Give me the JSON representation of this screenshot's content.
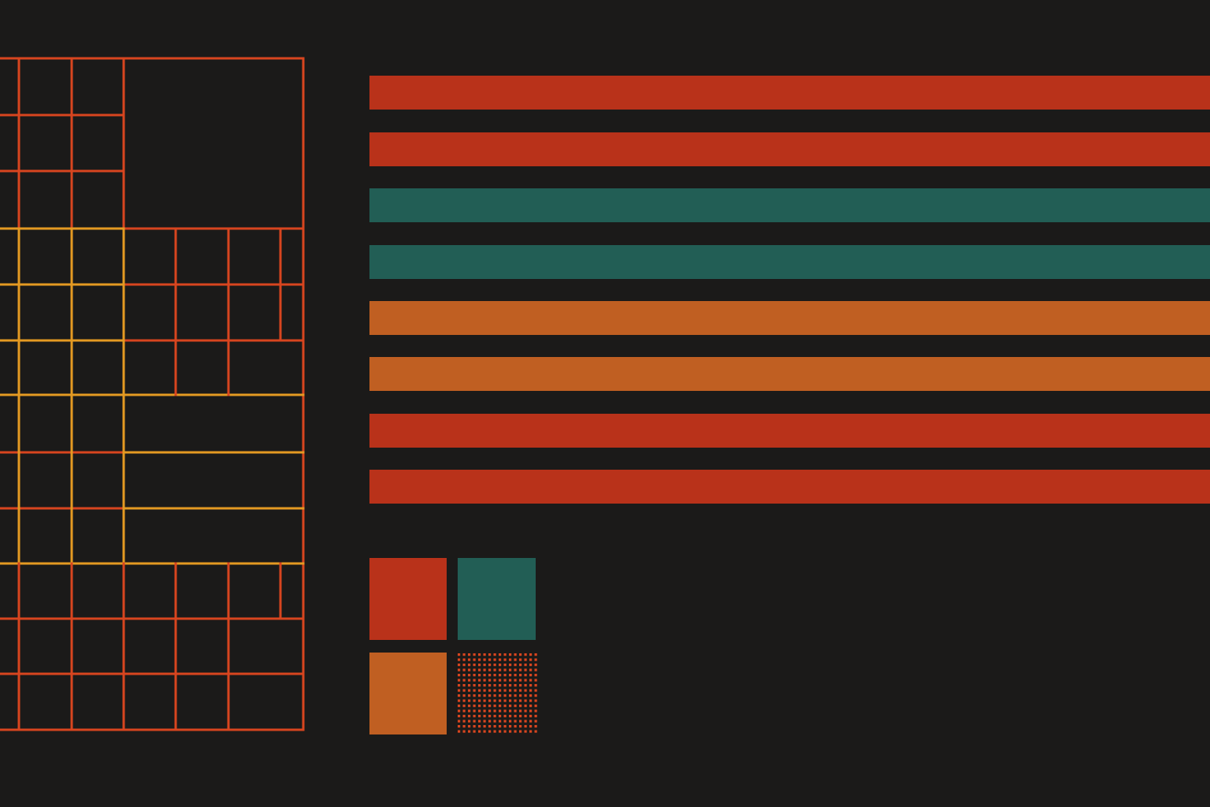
{
  "palette": {
    "background": "#1b1a19",
    "red": "#b9321a",
    "teal": "#225e55",
    "orange": "#c05f22",
    "grid_red": "#d8451f",
    "grid_yellow": "#e49a22",
    "dot_red": "#d8451f"
  },
  "stripes": [
    {
      "color_key": "red"
    },
    {
      "color_key": "red"
    },
    {
      "color_key": "teal"
    },
    {
      "color_key": "teal"
    },
    {
      "color_key": "orange"
    },
    {
      "color_key": "orange"
    },
    {
      "color_key": "red"
    },
    {
      "color_key": "red"
    }
  ],
  "swatches": [
    {
      "name": "swatch-red",
      "color_key": "red"
    },
    {
      "name": "swatch-teal",
      "color_key": "teal"
    },
    {
      "name": "swatch-orange",
      "color_key": "orange"
    },
    {
      "name": "swatch-dot-pattern",
      "color_key": "dot_red",
      "pattern": "dots"
    }
  ]
}
